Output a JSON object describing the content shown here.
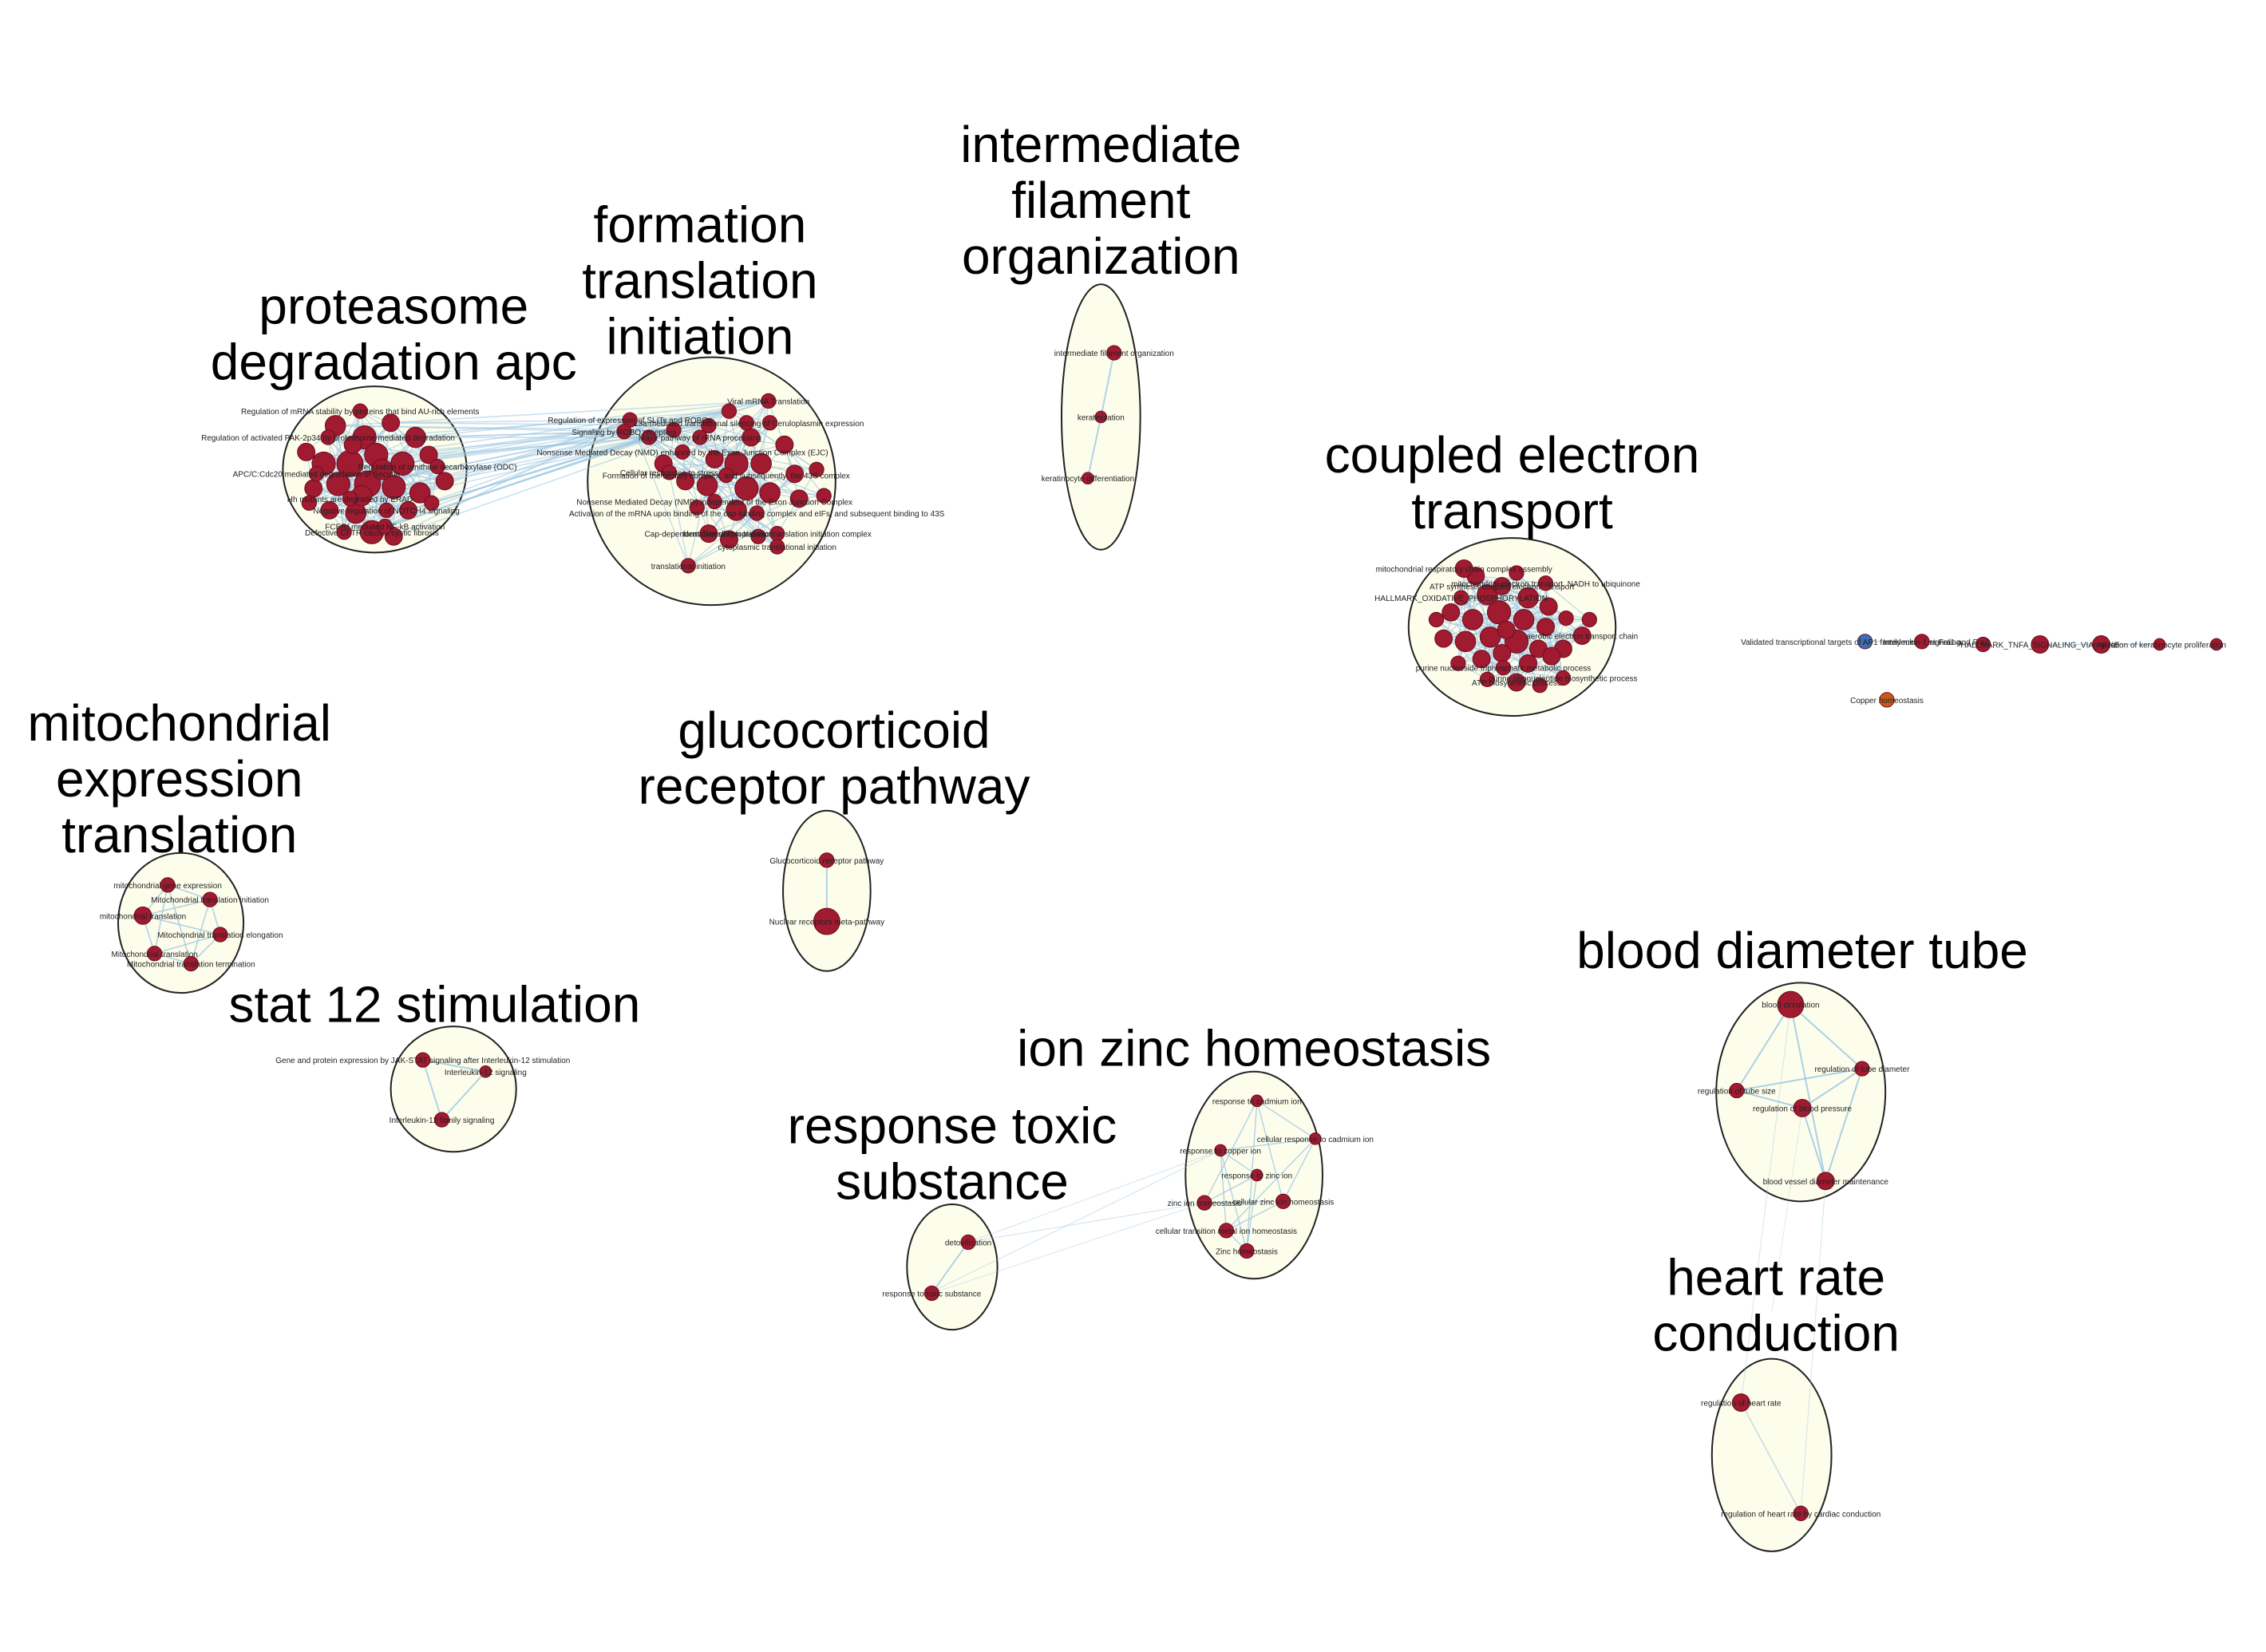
{
  "colors": {
    "node": "#a01a30",
    "node_stroke": "#6e0c1e",
    "node_blue": "#3a6fb8",
    "node_orange": "#c95a1a",
    "edge": "#9fc8e2",
    "cluster_fill": "#fdfdec",
    "cluster_stroke": "#222222"
  },
  "clusters": [
    {
      "id": "proteasome",
      "title": [
        "proteasome",
        "degradation apc"
      ]
    },
    {
      "id": "formation",
      "title": [
        "formation",
        "translation",
        "initiation"
      ]
    },
    {
      "id": "intermediate",
      "title": [
        "intermediate",
        "filament",
        "organization"
      ]
    },
    {
      "id": "coupled",
      "title": [
        "coupled electron",
        "transport"
      ]
    },
    {
      "id": "mitochondrial",
      "title": [
        "mitochondrial",
        "expression",
        "translation"
      ]
    },
    {
      "id": "glucocorticoid",
      "title": [
        "glucocorticoid",
        "receptor pathway"
      ]
    },
    {
      "id": "stat",
      "title": [
        "stat 12 stimulation"
      ]
    },
    {
      "id": "ion",
      "title": [
        "ion zinc homeostasis"
      ]
    },
    {
      "id": "response",
      "title": [
        "response toxic",
        "substance"
      ]
    },
    {
      "id": "blood",
      "title": [
        "blood diameter tube"
      ]
    },
    {
      "id": "heart",
      "title": [
        "heart rate",
        "conduction"
      ]
    }
  ],
  "labelled_nodes": [
    {
      "cluster": "intermediate",
      "label": "intermediate filament organization"
    },
    {
      "cluster": "intermediate",
      "label": "keratinization"
    },
    {
      "cluster": "intermediate",
      "label": "keratinocyte differentiation"
    },
    {
      "cluster": "glucocorticoid",
      "label": "Glucocorticoid receptor pathway"
    },
    {
      "cluster": "glucocorticoid",
      "label": "Nuclear receptors meta-pathway"
    },
    {
      "cluster": "stat",
      "label": "Gene and protein expression by JAK-STAT signaling after Interleukin-12 stimulation"
    },
    {
      "cluster": "stat",
      "label": "Interleukin-12 signaling"
    },
    {
      "cluster": "stat",
      "label": "Interleukin-12 family signaling"
    },
    {
      "cluster": "mitochondrial",
      "label": "mitochondrial gene expression"
    },
    {
      "cluster": "mitochondrial",
      "label": "Mitochondrial translation initiation"
    },
    {
      "cluster": "mitochondrial",
      "label": "mitochondrial translation"
    },
    {
      "cluster": "mitochondrial",
      "label": "Mitochondrial translation elongation"
    },
    {
      "cluster": "mitochondrial",
      "label": "Mitochondrial translation"
    },
    {
      "cluster": "mitochondrial",
      "label": "Mitochondrial translation termination"
    },
    {
      "cluster": "ion",
      "label": "response to cadmium ion"
    },
    {
      "cluster": "ion",
      "label": "cellular response to cadmium ion"
    },
    {
      "cluster": "ion",
      "label": "response to copper ion"
    },
    {
      "cluster": "ion",
      "label": "response to zinc ion"
    },
    {
      "cluster": "ion",
      "label": "zinc ion homeostasis"
    },
    {
      "cluster": "ion",
      "label": "cellular zinc ion homeostasis"
    },
    {
      "cluster": "ion",
      "label": "cellular transition metal ion homeostasis"
    },
    {
      "cluster": "ion",
      "label": "Zinc homeostasis"
    },
    {
      "cluster": "response",
      "label": "detoxification"
    },
    {
      "cluster": "response",
      "label": "response to toxic substance"
    },
    {
      "cluster": "blood",
      "label": "blood circulation"
    },
    {
      "cluster": "blood",
      "label": "regulation of tube size"
    },
    {
      "cluster": "blood",
      "label": "regulation of tube diameter"
    },
    {
      "cluster": "blood",
      "label": "regulation of blood pressure"
    },
    {
      "cluster": "blood",
      "label": "blood vessel diameter maintenance"
    },
    {
      "cluster": "heart",
      "label": "regulation of heart rate"
    },
    {
      "cluster": "heart",
      "label": "regulation of heart rate by cardiac conduction"
    },
    {
      "cluster": "formation",
      "label": "Viral mRNA Translation"
    },
    {
      "cluster": "formation",
      "label": "L13a-mediated translational silencing of Ceruloplasmin expression"
    },
    {
      "cluster": "formation",
      "label": "Major pathway of rRNA processing"
    },
    {
      "cluster": "formation",
      "label": "Regulation of expression of SLITs and ROBOs"
    },
    {
      "cluster": "formation",
      "label": "Signaling by ROBO receptors"
    },
    {
      "cluster": "formation",
      "label": "Nonsense Mediated Decay (NMD) enhanced by the Exon Junction Complex (EJC)"
    },
    {
      "cluster": "formation",
      "label": "Cellular responses to stress"
    },
    {
      "cluster": "formation",
      "label": "Nonsense Mediated Decay (NMD) independent of the Exon Junction Complex"
    },
    {
      "cluster": "formation",
      "label": "Formation of the ternary complex, and subsequently, the 43S complex"
    },
    {
      "cluster": "formation",
      "label": "Cap-dependent Translation Initiation"
    },
    {
      "cluster": "formation",
      "label": "Activation of the mRNA upon binding of the cap-binding complex and eIFs, and subsequent binding to 43S"
    },
    {
      "cluster": "formation",
      "label": "formation of cytoplasmic translation initiation complex"
    },
    {
      "cluster": "formation",
      "label": "cytoplasmic translational initiation"
    },
    {
      "cluster": "formation",
      "label": "translational initiation"
    },
    {
      "cluster": "proteasome",
      "label": "Regulation of mRNA stability by proteins that bind AU-rich elements"
    },
    {
      "cluster": "proteasome",
      "label": "Regulation of activated PAK-2p34 by proteasome mediated degradation"
    },
    {
      "cluster": "proteasome",
      "label": "APC/C:Cdc20 mediated degradation of Securin"
    },
    {
      "cluster": "proteasome",
      "label": "Regulation of ornithine decarboxylase (ODC)"
    },
    {
      "cluster": "proteasome",
      "label": "Hh mutants are degraded by ERAD"
    },
    {
      "cluster": "proteasome",
      "label": "Negative regulation of NOTCH4 signaling"
    },
    {
      "cluster": "proteasome",
      "label": "Defective CFTR causes cystic fibrosis"
    },
    {
      "cluster": "proteasome",
      "label": "FCERI mediated NF-kB activation"
    },
    {
      "cluster": "coupled",
      "label": "mitochondrial respiratory chain complex assembly"
    },
    {
      "cluster": "coupled",
      "label": "ATP synthesis coupled electron transport"
    },
    {
      "cluster": "coupled",
      "label": "HALLMARK_OXIDATIVE_PHOSPHORYLATION"
    },
    {
      "cluster": "coupled",
      "label": "mitochondrial electron transport, NADH to ubiquinone"
    },
    {
      "cluster": "coupled",
      "label": "aerobic electron transport chain"
    },
    {
      "cluster": "coupled",
      "label": "purine nucleoside triphosphate metabolic process"
    },
    {
      "cluster": "coupled",
      "label": "ATP biosynthetic process"
    },
    {
      "cluster": "coupled",
      "label": "purine ribonucleotide biosynthetic process"
    },
    {
      "cluster": "singletons",
      "label": "Validated transcriptional targets of AP1 family members Fra1 and Fra2"
    },
    {
      "cluster": "singletons",
      "label": "Interleukin-1 signaling"
    },
    {
      "cluster": "singletons",
      "label": "HALLMARK_TNFA_SIGNALING_VIA_NFKB"
    },
    {
      "cluster": "singletons",
      "label": "regulation of keratinocyte proliferation"
    },
    {
      "cluster": "singletons",
      "label": "Copper homeostasis"
    }
  ]
}
